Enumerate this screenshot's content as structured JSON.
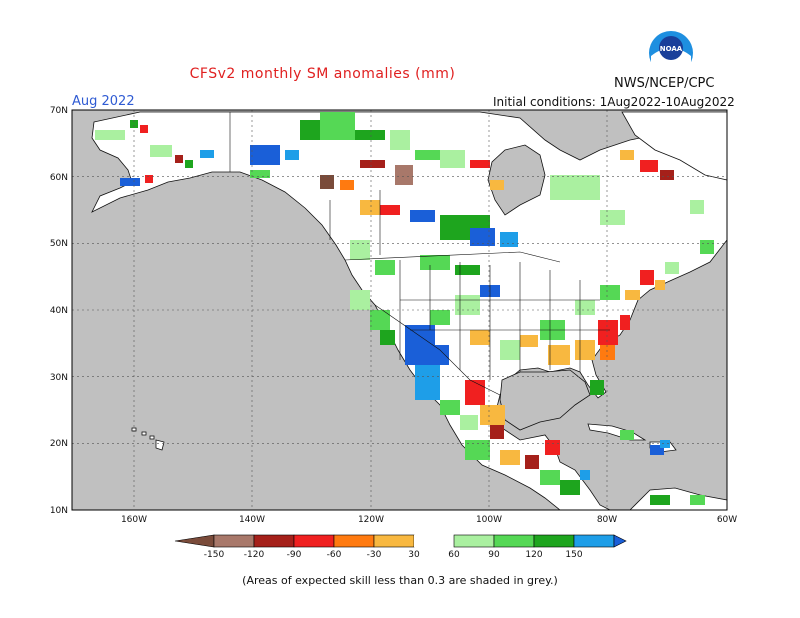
{
  "header": {
    "title": "CFSv2 monthly SM anomalies (mm)",
    "month": "Aug 2022",
    "agency": "NWS/NCEP/CPC",
    "initial_conditions": "Initial conditions: 1Aug2022-10Aug2022",
    "logo_text": "NOAA"
  },
  "map": {
    "lat_labels": [
      "70N",
      "60N",
      "50N",
      "40N",
      "30N",
      "20N",
      "10N"
    ],
    "lon_labels": [
      "160W",
      "140W",
      "120W",
      "100W",
      "80W",
      "60W"
    ],
    "colors": {
      "skill_shade": "#c0c0c0",
      "land": "#ffffff",
      "coast": "#000000",
      "grid": "#555555"
    }
  },
  "legend": {
    "labels": [
      "-150",
      "-120",
      "-90",
      "-60",
      "-30",
      "30",
      "60",
      "90",
      "120",
      "150"
    ],
    "colors": [
      "#7a4b3a",
      "#a8786a",
      "#a5201a",
      "#f02020",
      "#ff7a10",
      "#f8b840",
      "#ffffff",
      "#aaf0a0",
      "#55d855",
      "#1ea51e",
      "#1e9ee8",
      "#1a5fd8"
    ]
  },
  "footnote": "(Areas of expected skill less than 0.3 are shaded in grey.)"
}
